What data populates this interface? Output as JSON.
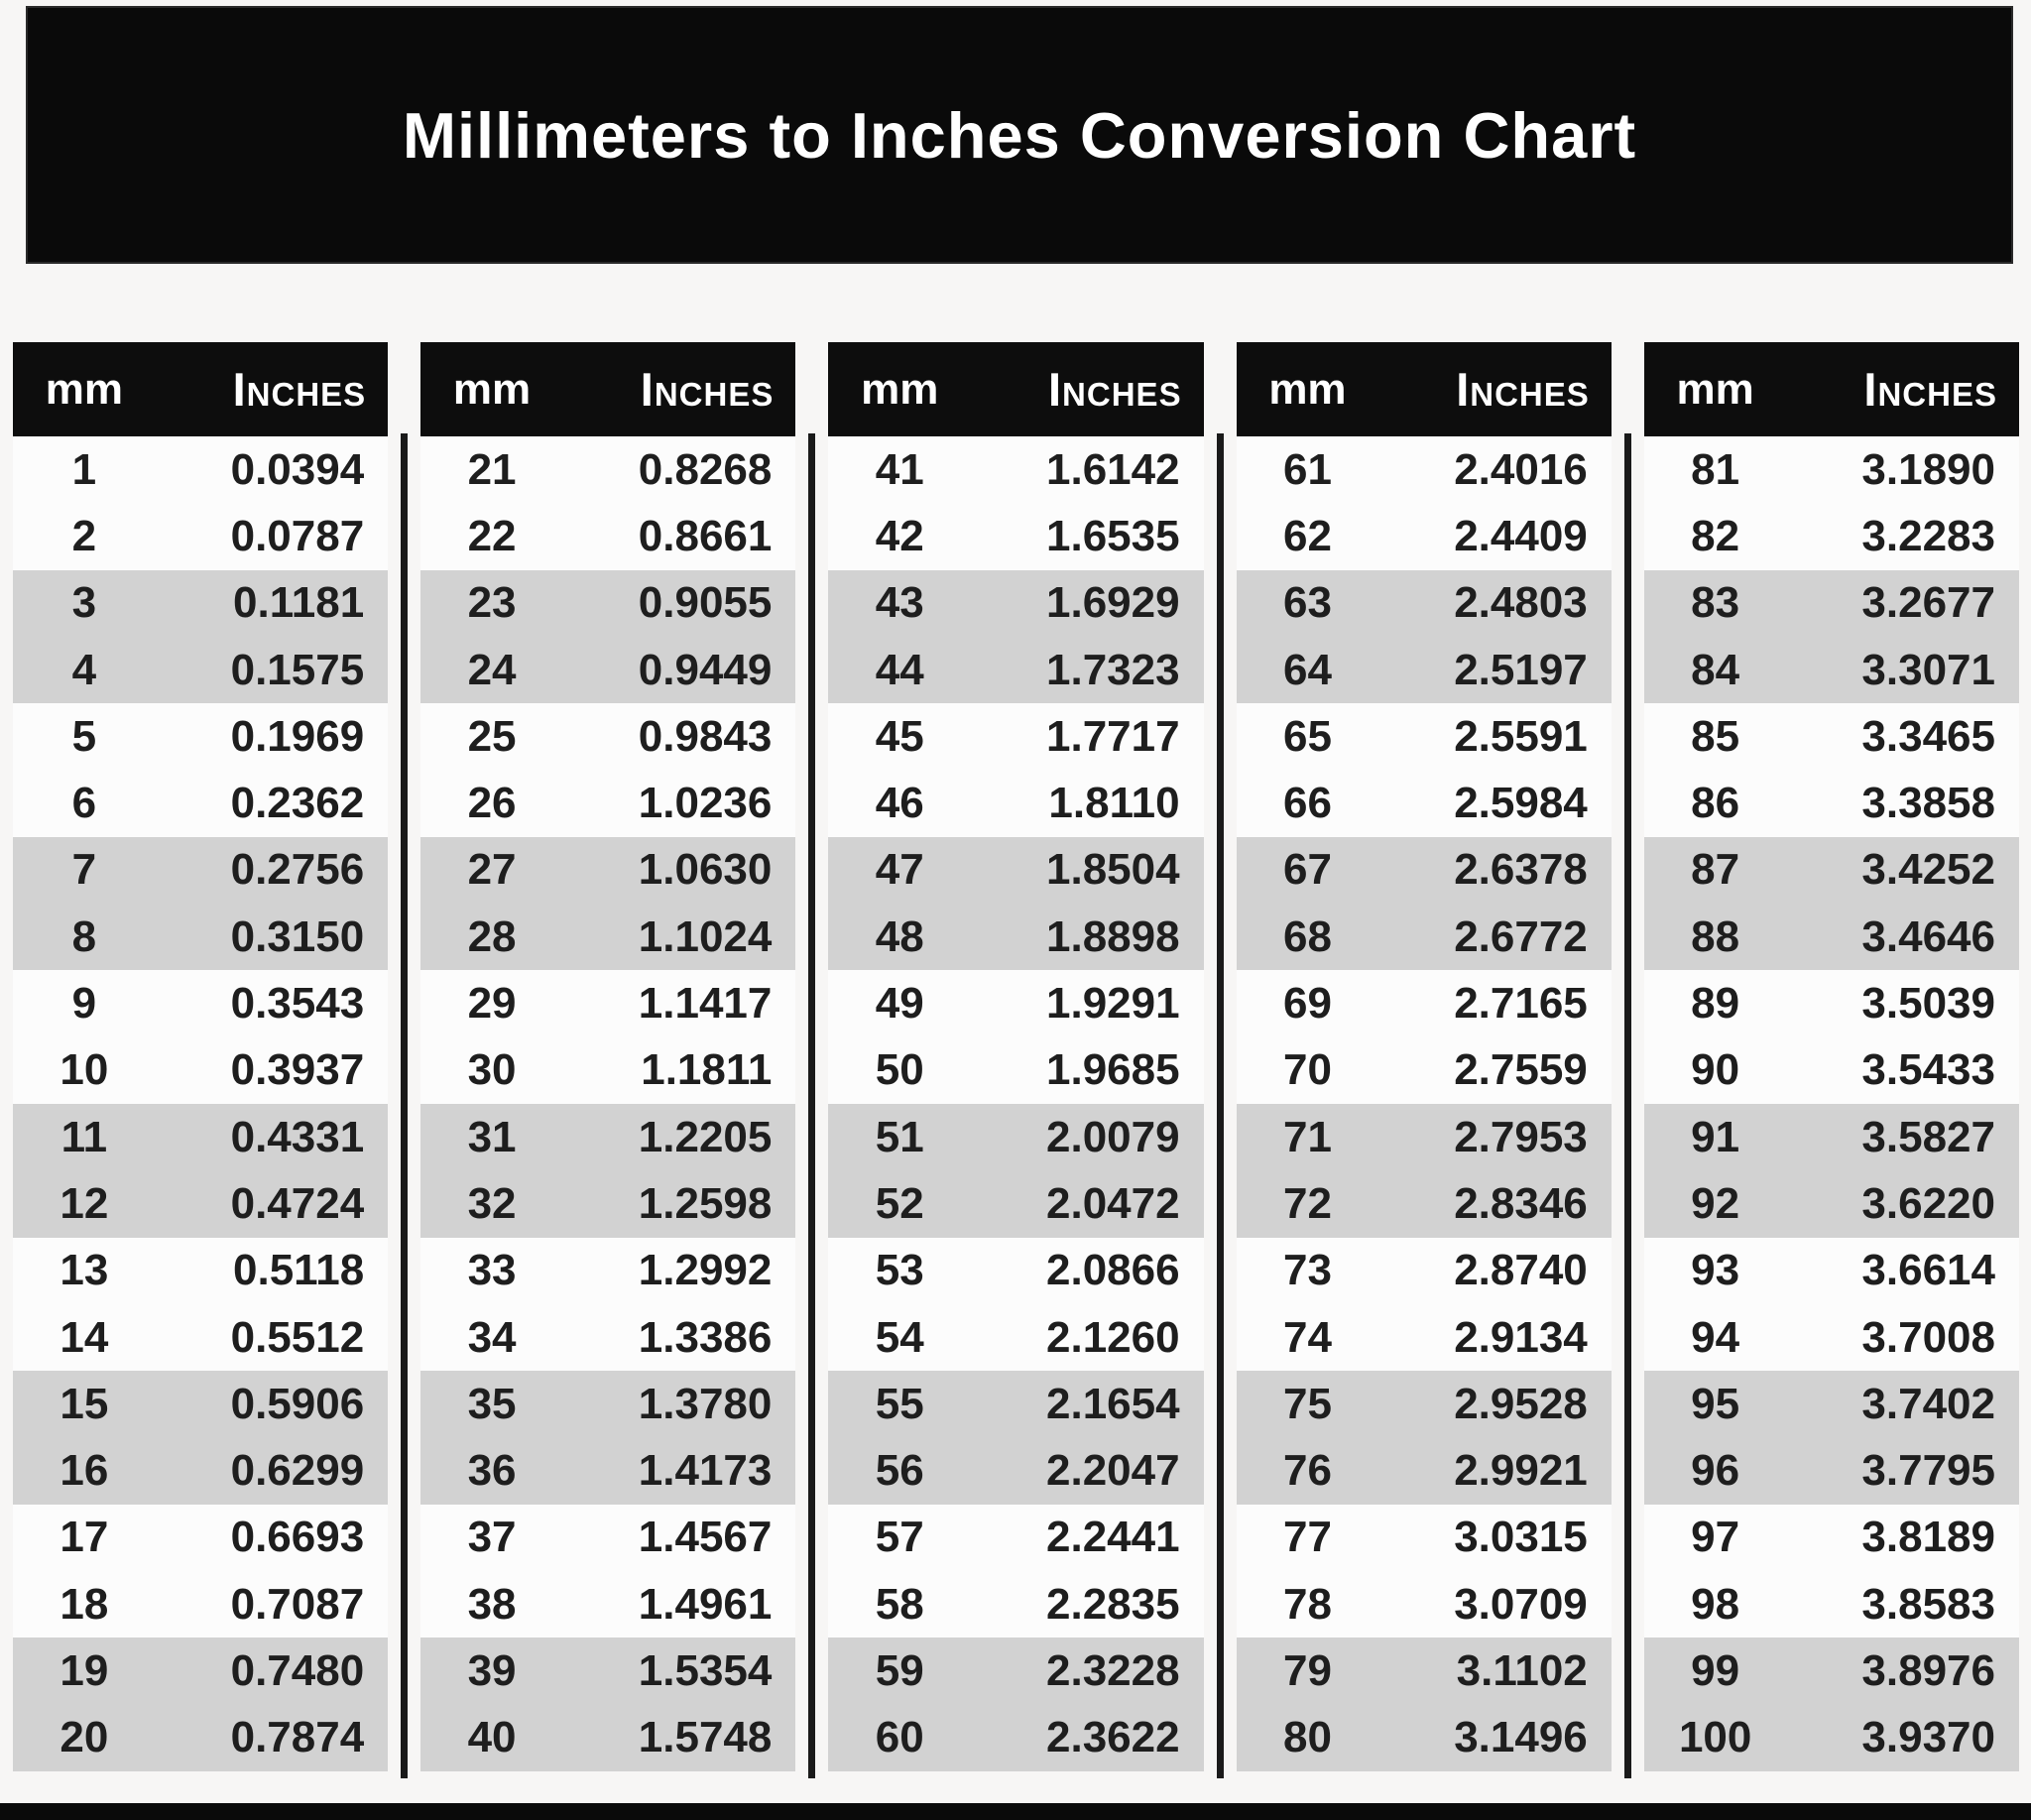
{
  "banner": {
    "title": "Millimeters to Inches Conversion Chart",
    "bg": "#0a0a0a",
    "text_color": "#ffffff"
  },
  "table": {
    "headers": {
      "mm": "mm",
      "inches": "Inches"
    },
    "header_bg": "#0d0d0d",
    "stripe_color": "#d2d2d2",
    "row_white": "#fcfcfc",
    "separator_color": "#1a1a1a",
    "groups": [
      {
        "rows": [
          {
            "mm": "1",
            "in": "0.0394"
          },
          {
            "mm": "2",
            "in": "0.0787"
          },
          {
            "mm": "3",
            "in": "0.1181"
          },
          {
            "mm": "4",
            "in": "0.1575"
          },
          {
            "mm": "5",
            "in": "0.1969"
          },
          {
            "mm": "6",
            "in": "0.2362"
          },
          {
            "mm": "7",
            "in": "0.2756"
          },
          {
            "mm": "8",
            "in": "0.3150"
          },
          {
            "mm": "9",
            "in": "0.3543"
          },
          {
            "mm": "10",
            "in": "0.3937"
          },
          {
            "mm": "11",
            "in": "0.4331"
          },
          {
            "mm": "12",
            "in": "0.4724"
          },
          {
            "mm": "13",
            "in": "0.5118"
          },
          {
            "mm": "14",
            "in": "0.5512"
          },
          {
            "mm": "15",
            "in": "0.5906"
          },
          {
            "mm": "16",
            "in": "0.6299"
          },
          {
            "mm": "17",
            "in": "0.6693"
          },
          {
            "mm": "18",
            "in": "0.7087"
          },
          {
            "mm": "19",
            "in": "0.7480"
          },
          {
            "mm": "20",
            "in": "0.7874"
          }
        ]
      },
      {
        "rows": [
          {
            "mm": "21",
            "in": "0.8268"
          },
          {
            "mm": "22",
            "in": "0.8661"
          },
          {
            "mm": "23",
            "in": "0.9055"
          },
          {
            "mm": "24",
            "in": "0.9449"
          },
          {
            "mm": "25",
            "in": "0.9843"
          },
          {
            "mm": "26",
            "in": "1.0236"
          },
          {
            "mm": "27",
            "in": "1.0630"
          },
          {
            "mm": "28",
            "in": "1.1024"
          },
          {
            "mm": "29",
            "in": "1.1417"
          },
          {
            "mm": "30",
            "in": "1.1811"
          },
          {
            "mm": "31",
            "in": "1.2205"
          },
          {
            "mm": "32",
            "in": "1.2598"
          },
          {
            "mm": "33",
            "in": "1.2992"
          },
          {
            "mm": "34",
            "in": "1.3386"
          },
          {
            "mm": "35",
            "in": "1.3780"
          },
          {
            "mm": "36",
            "in": "1.4173"
          },
          {
            "mm": "37",
            "in": "1.4567"
          },
          {
            "mm": "38",
            "in": "1.4961"
          },
          {
            "mm": "39",
            "in": "1.5354"
          },
          {
            "mm": "40",
            "in": "1.5748"
          }
        ]
      },
      {
        "rows": [
          {
            "mm": "41",
            "in": "1.6142"
          },
          {
            "mm": "42",
            "in": "1.6535"
          },
          {
            "mm": "43",
            "in": "1.6929"
          },
          {
            "mm": "44",
            "in": "1.7323"
          },
          {
            "mm": "45",
            "in": "1.7717"
          },
          {
            "mm": "46",
            "in": "1.8110"
          },
          {
            "mm": "47",
            "in": "1.8504"
          },
          {
            "mm": "48",
            "in": "1.8898"
          },
          {
            "mm": "49",
            "in": "1.9291"
          },
          {
            "mm": "50",
            "in": "1.9685"
          },
          {
            "mm": "51",
            "in": "2.0079"
          },
          {
            "mm": "52",
            "in": "2.0472"
          },
          {
            "mm": "53",
            "in": "2.0866"
          },
          {
            "mm": "54",
            "in": "2.1260"
          },
          {
            "mm": "55",
            "in": "2.1654"
          },
          {
            "mm": "56",
            "in": "2.2047"
          },
          {
            "mm": "57",
            "in": "2.2441"
          },
          {
            "mm": "58",
            "in": "2.2835"
          },
          {
            "mm": "59",
            "in": "2.3228"
          },
          {
            "mm": "60",
            "in": "2.3622"
          }
        ]
      },
      {
        "rows": [
          {
            "mm": "61",
            "in": "2.4016"
          },
          {
            "mm": "62",
            "in": "2.4409"
          },
          {
            "mm": "63",
            "in": "2.4803"
          },
          {
            "mm": "64",
            "in": "2.5197"
          },
          {
            "mm": "65",
            "in": "2.5591"
          },
          {
            "mm": "66",
            "in": "2.5984"
          },
          {
            "mm": "67",
            "in": "2.6378"
          },
          {
            "mm": "68",
            "in": "2.6772"
          },
          {
            "mm": "69",
            "in": "2.7165"
          },
          {
            "mm": "70",
            "in": "2.7559"
          },
          {
            "mm": "71",
            "in": "2.7953"
          },
          {
            "mm": "72",
            "in": "2.8346"
          },
          {
            "mm": "73",
            "in": "2.8740"
          },
          {
            "mm": "74",
            "in": "2.9134"
          },
          {
            "mm": "75",
            "in": "2.9528"
          },
          {
            "mm": "76",
            "in": "2.9921"
          },
          {
            "mm": "77",
            "in": "3.0315"
          },
          {
            "mm": "78",
            "in": "3.0709"
          },
          {
            "mm": "79",
            "in": "3.1102"
          },
          {
            "mm": "80",
            "in": "3.1496"
          }
        ]
      },
      {
        "rows": [
          {
            "mm": "81",
            "in": "3.1890"
          },
          {
            "mm": "82",
            "in": "3.2283"
          },
          {
            "mm": "83",
            "in": "3.2677"
          },
          {
            "mm": "84",
            "in": "3.3071"
          },
          {
            "mm": "85",
            "in": "3.3465"
          },
          {
            "mm": "86",
            "in": "3.3858"
          },
          {
            "mm": "87",
            "in": "3.4252"
          },
          {
            "mm": "88",
            "in": "3.4646"
          },
          {
            "mm": "89",
            "in": "3.5039"
          },
          {
            "mm": "90",
            "in": "3.5433"
          },
          {
            "mm": "91",
            "in": "3.5827"
          },
          {
            "mm": "92",
            "in": "3.6220"
          },
          {
            "mm": "93",
            "in": "3.6614"
          },
          {
            "mm": "94",
            "in": "3.7008"
          },
          {
            "mm": "95",
            "in": "3.7402"
          },
          {
            "mm": "96",
            "in": "3.7795"
          },
          {
            "mm": "97",
            "in": "3.8189"
          },
          {
            "mm": "98",
            "in": "3.8583"
          },
          {
            "mm": "99",
            "in": "3.8976"
          },
          {
            "mm": "100",
            "in": "3.9370"
          }
        ]
      }
    ]
  }
}
